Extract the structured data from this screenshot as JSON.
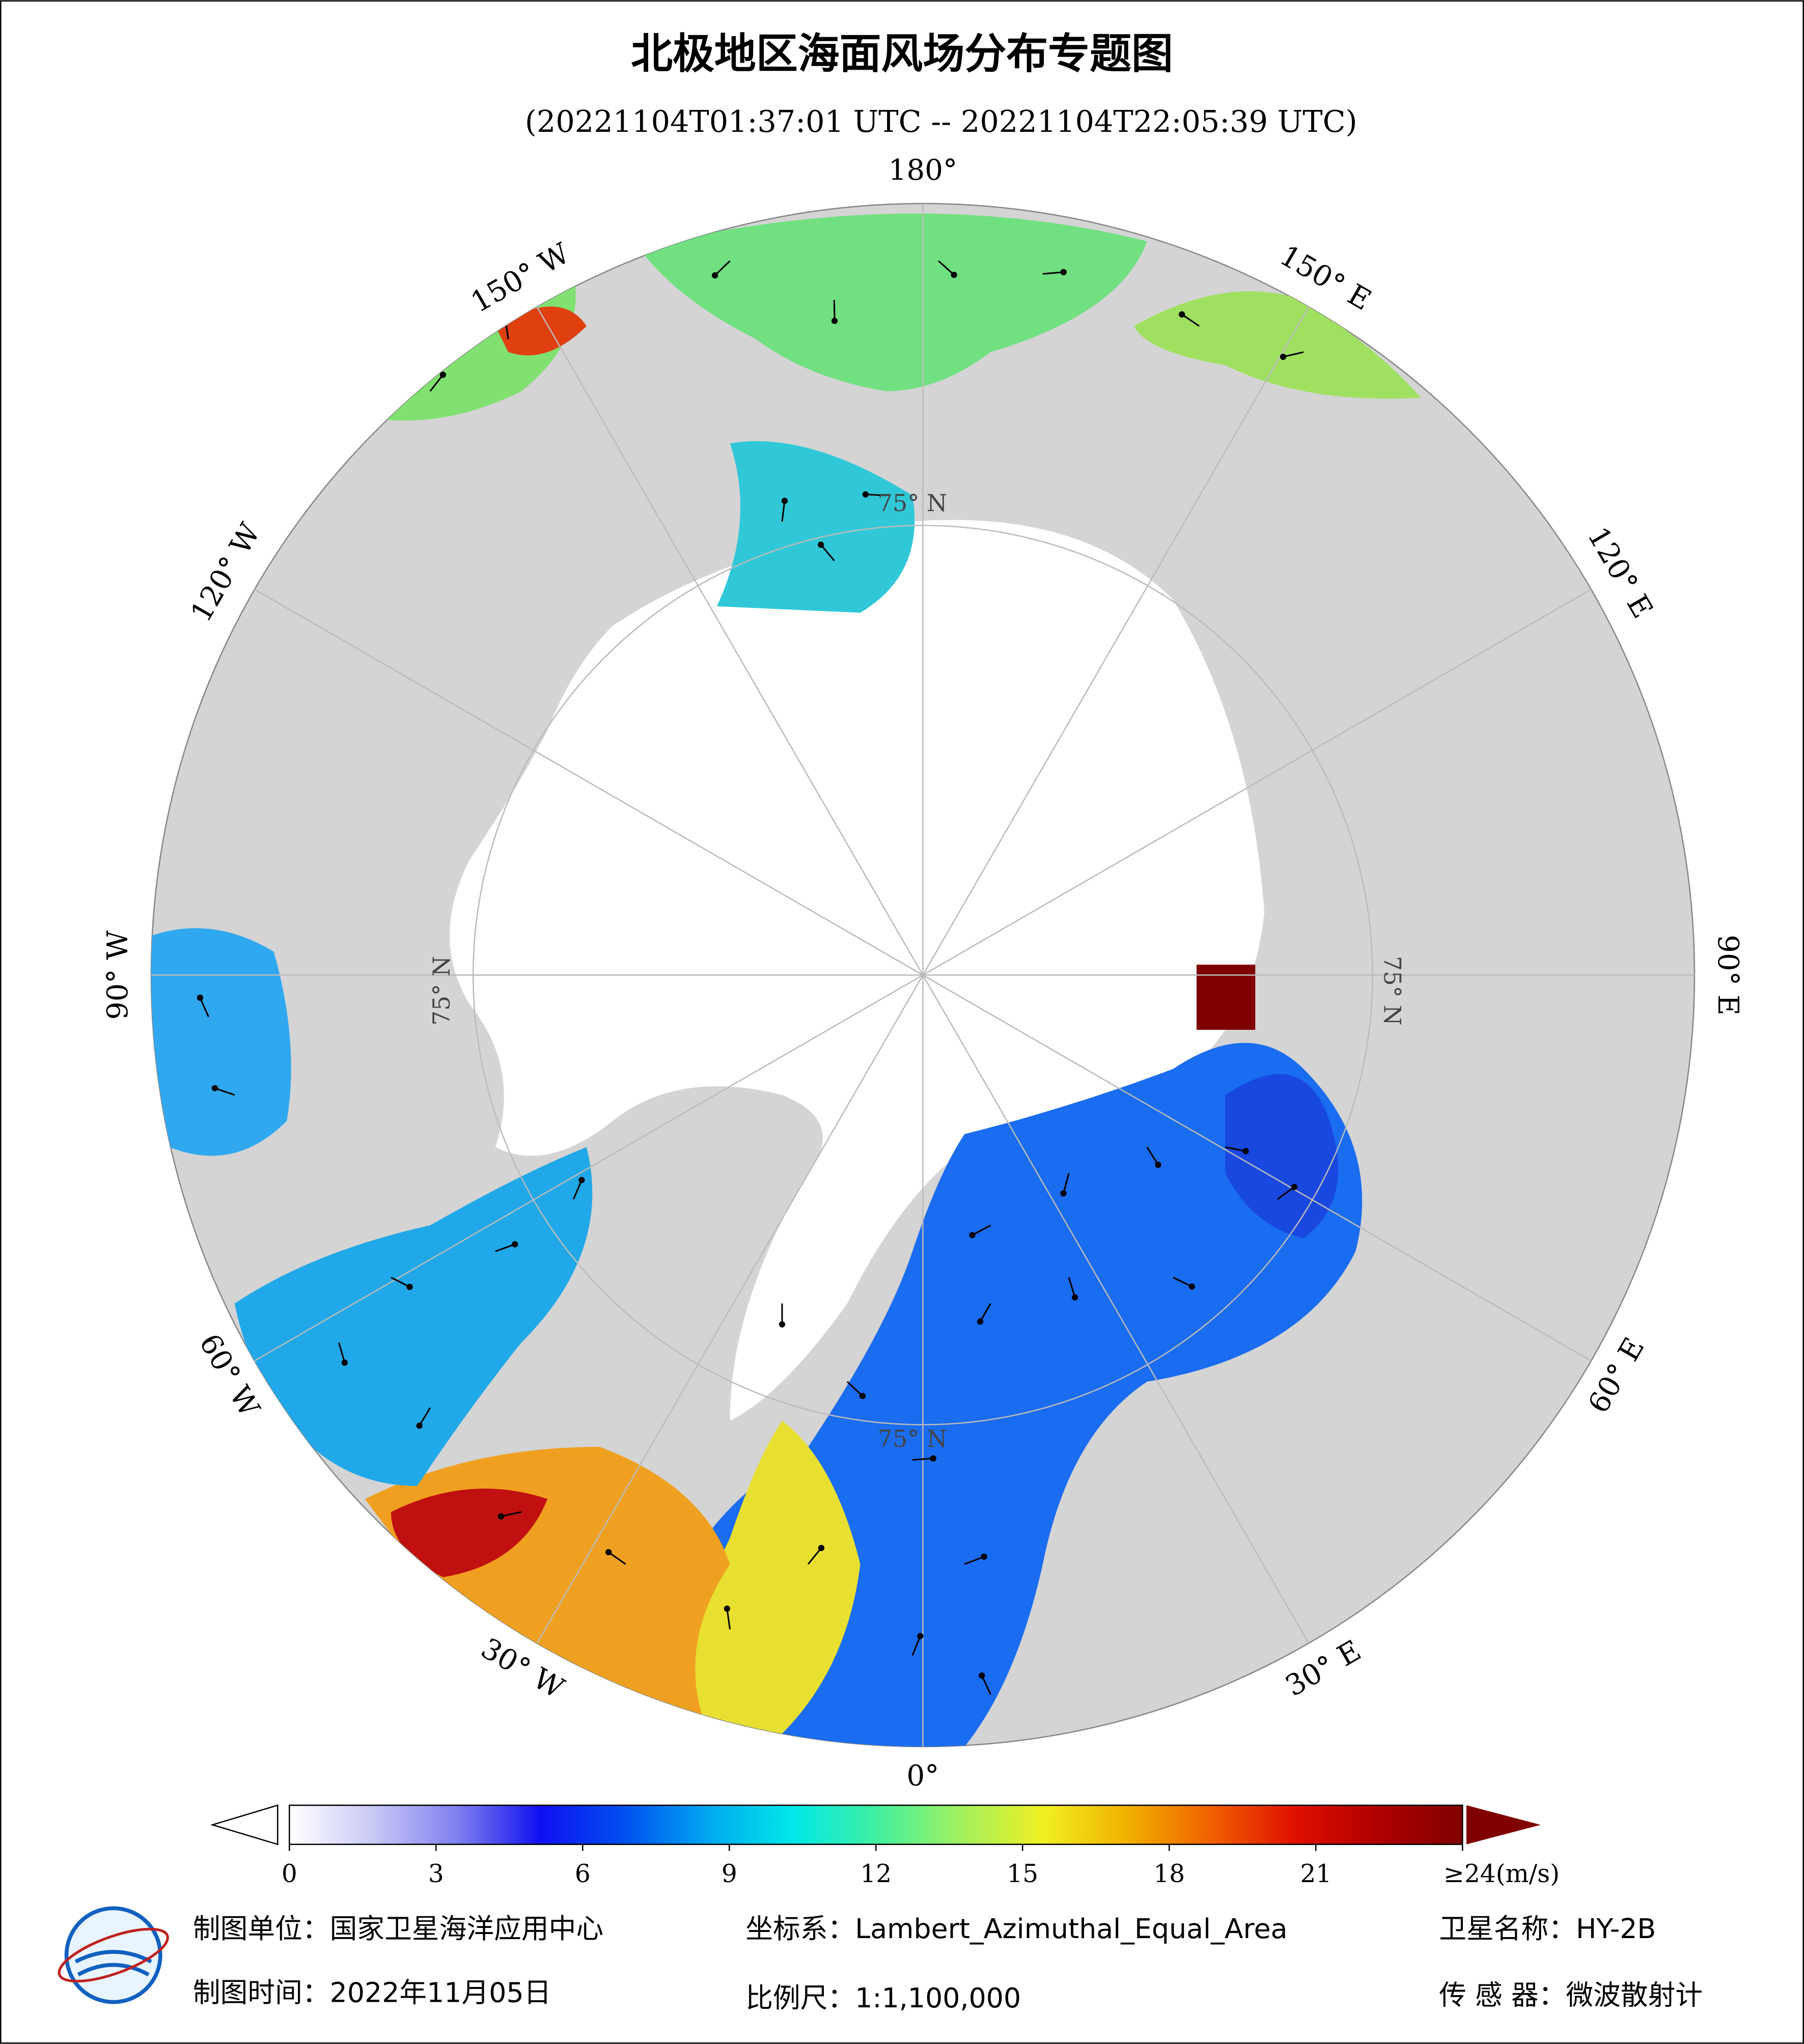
{
  "header": {
    "title": "北极地区海面风场分布专题图",
    "subtitle": "(20221104T01:37:01 UTC -- 20221104T22:05:39 UTC)"
  },
  "map": {
    "lon_labels": [
      "180°",
      "150° E",
      "120° E",
      "90° E",
      "60° E",
      "30° E",
      "0°",
      "30° W",
      "60° W",
      "90° W",
      "120° W",
      "150° W"
    ],
    "lat_labels": [
      "75° N",
      "75° N",
      "75° N",
      "75° N"
    ]
  },
  "colorbar": {
    "lim": [
      0,
      24
    ],
    "ticks": [
      0,
      3,
      6,
      9,
      12,
      15,
      18,
      21,
      {
        "value": 24,
        "label": "≥24(m/s)"
      }
    ],
    "colors": [
      "#ffffff",
      "#c8c8f5",
      "#8080f0",
      "#1010f0",
      "#0050f0",
      "#00a8f0",
      "#00e8e8",
      "#40f0a0",
      "#a0f060",
      "#f0f020",
      "#f0b000",
      "#f06000",
      "#e01000",
      "#b00000",
      "#800000"
    ]
  },
  "footer": {
    "unit": "制图单位：国家卫星海洋应用中心",
    "crs": "坐标系：Lambert_Azimuthal_Equal_Area",
    "satellite": "卫星名称：HY-2B",
    "date": "制图时间：2022年11月05日",
    "scale": "比例尺：1:1,100,000",
    "sensor": "传 感 器：微波散射计"
  }
}
